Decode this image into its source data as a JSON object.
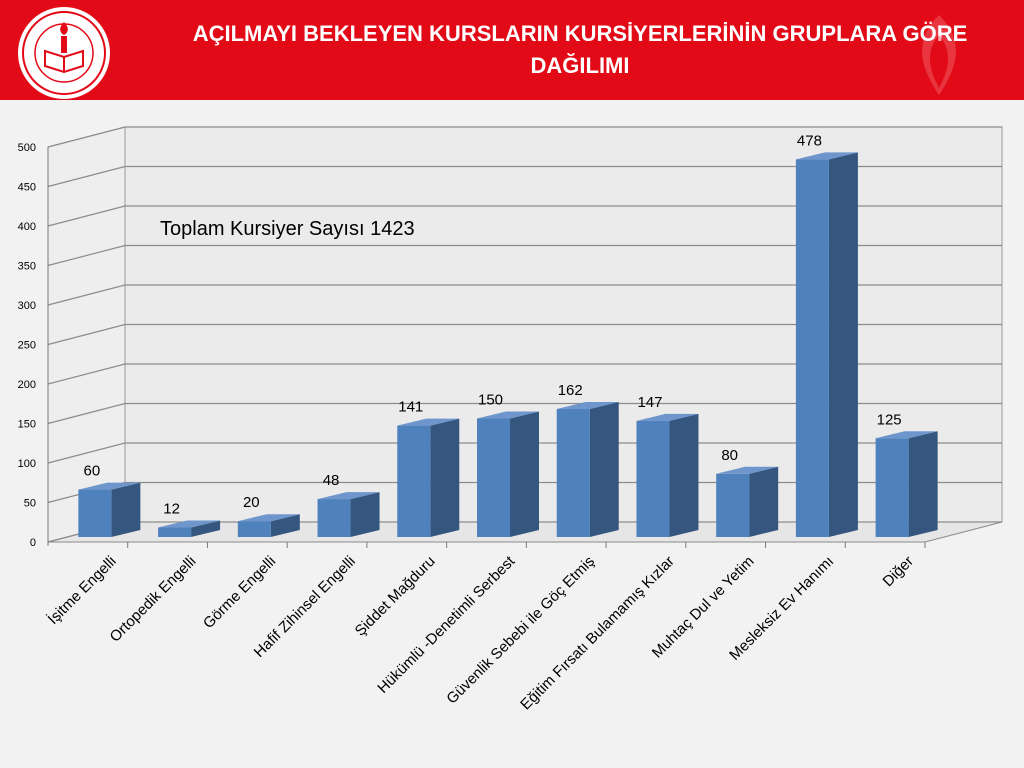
{
  "header": {
    "title_line1": "AÇILMAYI BEKLEYEN KURSLARIN KURSİYERLERİNİN GRUPLARA GÖRE",
    "title_line2": "DAĞILIMI",
    "logo_text": "T.C. MİLLİ EĞİTİM BAKANLIĞI"
  },
  "colors": {
    "header_bg": "#e30a17",
    "bar_front": "#4f81bd",
    "bar_side": "#34567f",
    "bar_top": "#6e96cc"
  },
  "chart_data": {
    "type": "bar",
    "title": "",
    "annotation": "Toplam  Kursiyer Sayısı 1423",
    "categories": [
      "İşitme Engelli",
      "Ortopedik Engelli",
      "Görme Engelli",
      "Hafif Zihinsel Engelli",
      "Şiddet Mağduru",
      "Hükümlü -Denetimli Serbest",
      "Güvenlik Sebebi ile  Göç Etmiş",
      "Eğitim  Fırsatı Bulamamış Kızlar",
      "Muhtaç Dul ve Yetim",
      "Mesleksiz  Ev Hanımı",
      "Diğer"
    ],
    "values": [
      60,
      12,
      20,
      48,
      141,
      150,
      162,
      147,
      80,
      478,
      125
    ],
    "ylim": [
      0,
      500
    ],
    "yticks": [
      "0",
      "50",
      "100",
      "150",
      "200",
      "250",
      "300",
      "350",
      "400",
      "450",
      "500"
    ],
    "grid": true,
    "style": "3d-column",
    "xlabel": "",
    "ylabel": ""
  }
}
